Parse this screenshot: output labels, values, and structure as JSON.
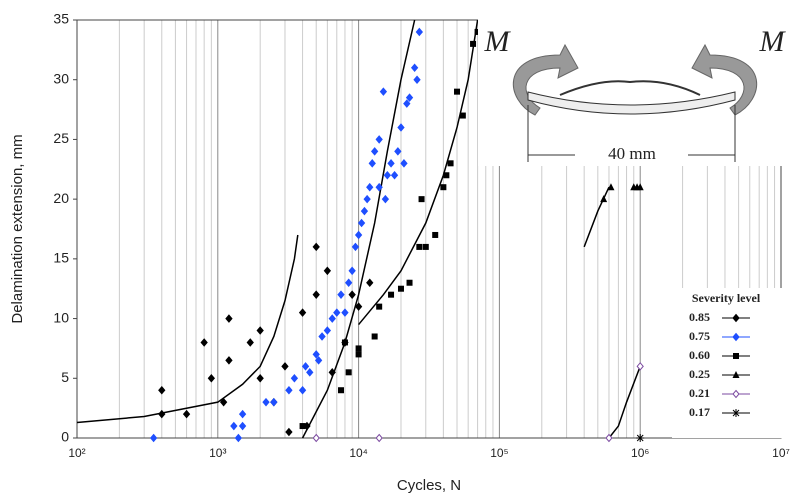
{
  "chart_data": {
    "type": "scatter",
    "x_label": "Cycles, N",
    "y_label": "Delamination extension, mm",
    "log_x": true,
    "xlim": [
      100,
      10000000
    ],
    "xticks": [
      {
        "value": 100,
        "label": "10²"
      },
      {
        "value": 1000,
        "label": "10³"
      },
      {
        "value": 10000,
        "label": "10⁴"
      },
      {
        "value": 100000,
        "label": "10⁵"
      },
      {
        "value": 1000000,
        "label": "10⁶"
      },
      {
        "value": 10000000,
        "label": "10⁷"
      }
    ],
    "ylim": [
      0,
      35
    ],
    "yticks": [
      0,
      5,
      10,
      15,
      20,
      25,
      30,
      35
    ],
    "grid": "x",
    "legend_title": "Severity level",
    "legend_position": "lower right",
    "series": [
      {
        "name": "0.85",
        "color": "#000000",
        "marker": "diamond",
        "x": [
          400,
          400,
          600,
          800,
          900,
          1100,
          1200,
          1200,
          1700,
          2000,
          2000,
          2500,
          3000,
          3200,
          4000,
          4300,
          5000,
          6000,
          6500,
          8000,
          9000,
          10000,
          12000,
          5000
        ],
        "values": [
          4,
          2,
          2,
          8,
          5,
          3,
          10,
          6.5,
          8,
          9,
          5,
          3,
          6,
          0.5,
          10.5,
          1,
          12,
          14,
          5.5,
          8,
          12,
          11,
          13,
          16
        ]
      },
      {
        "name": "0.75",
        "color": "#1f4fff",
        "marker": "diamond",
        "x": [
          350,
          1300,
          1400,
          1500,
          1500,
          2200,
          2500,
          3200,
          3500,
          4000,
          4200,
          4500,
          5000,
          5200,
          5500,
          6000,
          6500,
          7000,
          7500,
          8000,
          8500,
          9000,
          9500,
          10000,
          10500,
          11000,
          11500,
          12000,
          12500,
          13000,
          14000,
          15000,
          14000,
          15500,
          16000,
          17000,
          18000,
          19000,
          20000,
          21000,
          22000,
          23000,
          25000,
          26000,
          27000
        ],
        "values": [
          0,
          1,
          0,
          2,
          1,
          3,
          3,
          4,
          5,
          4,
          6,
          5.5,
          7,
          6.5,
          8.5,
          9,
          10,
          10.5,
          12,
          10.5,
          13,
          14,
          16,
          17,
          18,
          19,
          20,
          21,
          23,
          24,
          25,
          29,
          21,
          20,
          22,
          23,
          22,
          24,
          26,
          23,
          28,
          28.5,
          31,
          30,
          34
        ]
      },
      {
        "name": "0.60",
        "color": "#000000",
        "marker": "square",
        "x": [
          4000,
          7500,
          8000,
          8500,
          10000,
          10000,
          13000,
          14000,
          17000,
          20000,
          23000,
          27000,
          28000,
          30000,
          35000,
          40000,
          42000,
          45000,
          50000,
          55000,
          65000,
          70000
        ],
        "values": [
          1,
          4,
          8,
          5.5,
          7.5,
          7,
          8.5,
          11,
          12,
          12.5,
          13,
          16,
          20,
          16,
          17,
          21,
          22,
          23,
          29,
          27,
          33,
          34
        ]
      },
      {
        "name": "0.25",
        "color": "#000000",
        "marker": "triangle",
        "x": [
          550000,
          620000,
          900000,
          950000,
          1000000
        ],
        "values": [
          20,
          21,
          21,
          21,
          21
        ]
      },
      {
        "name": "0.21",
        "color": "#7b4aa0",
        "marker": "open-diamond",
        "x": [
          5000,
          14000,
          600000,
          1000000
        ],
        "values": [
          0,
          0,
          0,
          6
        ]
      },
      {
        "name": "0.17",
        "color": "#000000",
        "marker": "star",
        "x": [
          1000000
        ],
        "values": [
          0
        ]
      }
    ],
    "curves": [
      {
        "color": "#000000",
        "x": [
          100,
          300,
          1000,
          1500,
          2000,
          2500,
          3000,
          3500,
          3700
        ],
        "values": [
          1.3,
          1.8,
          3,
          4.5,
          6,
          8.5,
          11.5,
          15,
          17
        ]
      },
      {
        "color": "#000000",
        "x": [
          4000,
          6000,
          8000,
          10000,
          13000,
          16000,
          20000,
          25000
        ],
        "values": [
          0,
          4,
          8,
          12,
          18,
          24,
          30,
          35
        ]
      },
      {
        "color": "#000000",
        "x": [
          10000,
          15000,
          20000,
          30000,
          40000,
          50000,
          60000,
          70000
        ],
        "values": [
          9.5,
          12,
          14,
          18,
          22,
          26,
          30,
          35
        ]
      },
      {
        "color": "#000000",
        "x": [
          400000,
          500000,
          600000
        ],
        "values": [
          16,
          19,
          21
        ]
      },
      {
        "color": "#000000",
        "x": [
          600000,
          700000,
          800000,
          1000000
        ],
        "values": [
          0,
          1,
          3,
          6
        ]
      }
    ],
    "inset": {
      "moment_left": "M",
      "moment_right": "M",
      "span": "40 mm"
    }
  }
}
